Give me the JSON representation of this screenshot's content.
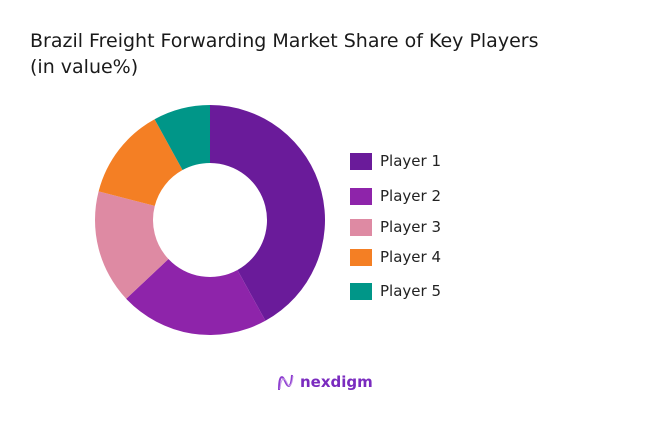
{
  "chart_data": {
    "type": "pie",
    "variant": "donut",
    "title": "Brazil Freight Forwarding Market Share of Key Players",
    "subtitle": "(in value%)",
    "categories": [
      "Player 1",
      "Player 2",
      "Player 3",
      "Player 4",
      "Player 5"
    ],
    "values": [
      42,
      21,
      16,
      13,
      8
    ],
    "colors": [
      "#6a1b9a",
      "#8e24aa",
      "#de8aa3",
      "#f47f24",
      "#009688"
    ],
    "legend_position": "right"
  },
  "header": {
    "title_line1": "Brazil Freight Forwarding Market Share of Key Players",
    "title_line2": "(in value%)"
  },
  "legend": {
    "items": [
      {
        "label": "Player 1",
        "color": "#6a1b9a"
      },
      {
        "label": "Player 2",
        "color": "#8e24aa"
      },
      {
        "label": "Player 3",
        "color": "#de8aa3"
      },
      {
        "label": "Player 4",
        "color": "#f47f24"
      },
      {
        "label": "Player 5",
        "color": "#009688"
      }
    ]
  },
  "footer": {
    "brand": "nexdigm"
  }
}
